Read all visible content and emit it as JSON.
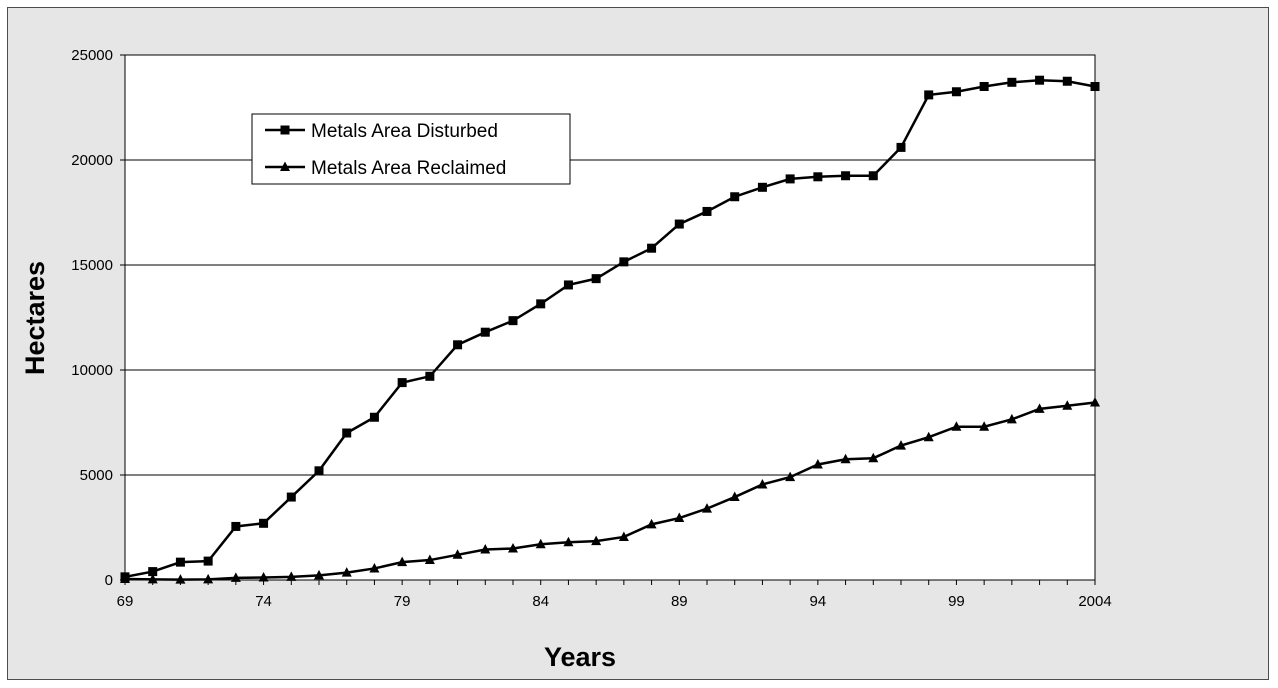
{
  "chart_data": {
    "type": "line",
    "title": "",
    "xlabel": "Years",
    "ylabel": "Hectares",
    "x": [
      1969,
      1970,
      1971,
      1972,
      1973,
      1974,
      1975,
      1976,
      1977,
      1978,
      1979,
      1980,
      1981,
      1982,
      1983,
      1984,
      1985,
      1986,
      1987,
      1988,
      1989,
      1990,
      1991,
      1992,
      1993,
      1994,
      1995,
      1996,
      1997,
      1998,
      1999,
      2000,
      2001,
      2002,
      2003,
      2004
    ],
    "xlim": [
      1969,
      2004
    ],
    "ylim": [
      0,
      25000
    ],
    "xticks": [
      1969,
      1974,
      1979,
      1984,
      1989,
      1994,
      1999,
      2004
    ],
    "xtick_labels": [
      "69",
      "74",
      "79",
      "84",
      "89",
      "94",
      "99",
      "2004"
    ],
    "yticks": [
      0,
      5000,
      10000,
      15000,
      20000,
      25000
    ],
    "ytick_labels": [
      "0",
      "5000",
      "10000",
      "15000",
      "20000",
      "25000"
    ],
    "grid": "horizontal",
    "legend_position": "top-left",
    "series": [
      {
        "name": "Metals Area Disturbed",
        "marker": "square",
        "color": "#000000",
        "values": [
          150,
          400,
          850,
          900,
          2550,
          2700,
          3950,
          5200,
          7000,
          7750,
          9400,
          9700,
          11200,
          11800,
          12350,
          13150,
          14050,
          14350,
          15150,
          15800,
          16950,
          17550,
          18250,
          18700,
          19100,
          19200,
          19250,
          19250,
          20600,
          23100,
          23250,
          23500,
          23700,
          23800,
          23750,
          23500
        ]
      },
      {
        "name": "Metals Area Reclaimed",
        "marker": "triangle",
        "color": "#000000",
        "values": [
          50,
          30,
          20,
          30,
          100,
          120,
          150,
          220,
          350,
          550,
          850,
          950,
          1200,
          1450,
          1500,
          1700,
          1800,
          1850,
          2050,
          2650,
          2950,
          3400,
          3950,
          4550,
          4900,
          5500,
          5750,
          5800,
          6400,
          6800,
          7300,
          7300,
          7650,
          8150,
          8300,
          8450
        ]
      }
    ]
  },
  "colors": {
    "plot_background": "#ffffff",
    "frame_background": "#e6e6e6",
    "line": "#000000",
    "gridline": "#000000"
  }
}
